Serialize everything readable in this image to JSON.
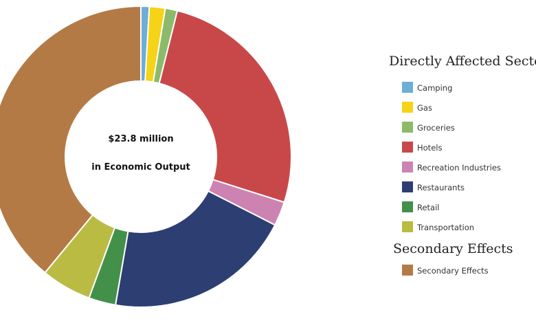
{
  "chart_data": {
    "type": "pie",
    "style": "donut",
    "center_text": [
      "$23.8 million",
      "in Economic Output"
    ],
    "slices": [
      {
        "label": "Camping",
        "value": 0.9,
        "color": "#6baed6",
        "group": "Directly Affected Sectors"
      },
      {
        "label": "Gas",
        "value": 1.7,
        "color": "#f5d316",
        "group": "Directly Affected Sectors"
      },
      {
        "label": "Groceries",
        "value": 1.3,
        "color": "#8cba6a",
        "group": "Directly Affected Sectors"
      },
      {
        "label": "Hotels",
        "value": 26.0,
        "color": "#c8484a",
        "group": "Directly Affected Sectors"
      },
      {
        "label": "Recreation Industries",
        "value": 2.6,
        "color": "#cd83b1",
        "group": "Directly Affected Sectors"
      },
      {
        "label": "Restaurants",
        "value": 20.2,
        "color": "#2d3e72",
        "group": "Directly Affected Sectors"
      },
      {
        "label": "Retail",
        "value": 2.9,
        "color": "#43904a",
        "group": "Directly Affected Sectors"
      },
      {
        "label": "Transportation",
        "value": 5.4,
        "color": "#babb43",
        "group": "Directly Affected Sectors"
      },
      {
        "label": "Secondary Effects",
        "value": 39.0,
        "color": "#b47a45",
        "group": "Secondary Effects"
      }
    ],
    "legend_placement": "right",
    "legend_groups": [
      {
        "title": "Directly Affected Sectors",
        "items": [
          "Camping",
          "Gas",
          "Groceries",
          "Hotels",
          "Recreation Industries",
          "Restaurants",
          "Retail",
          "Transportation"
        ]
      },
      {
        "title": "Secondary Effects",
        "items": [
          "Secondary Effects"
        ]
      }
    ]
  }
}
